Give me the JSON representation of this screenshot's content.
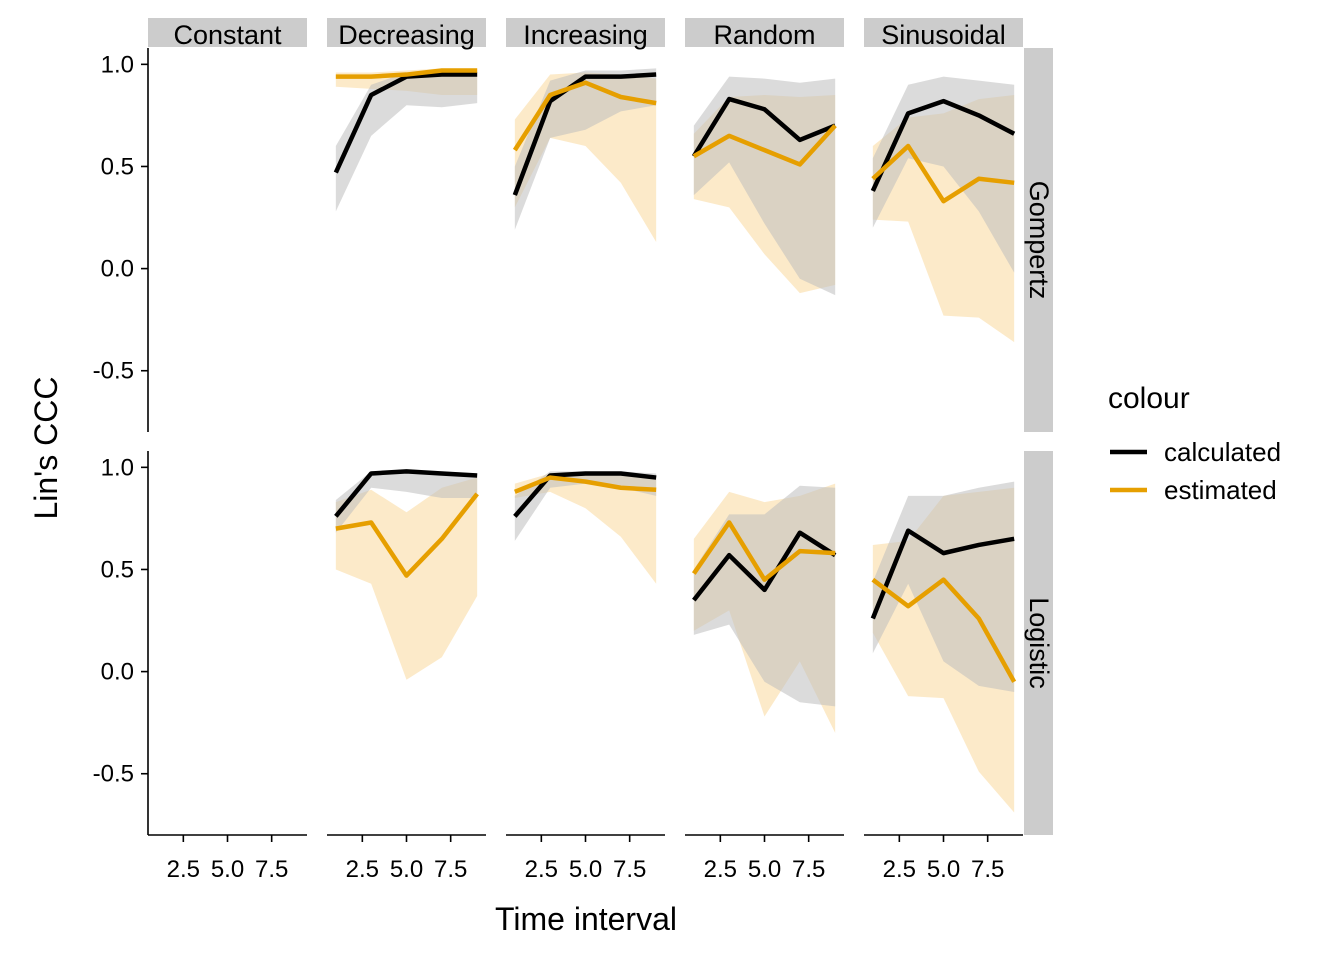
{
  "chart_data": {
    "type": "line",
    "xlabel": "Time interval",
    "ylabel": "Lin's CCC",
    "xlim": [
      0.5,
      9.5
    ],
    "ylim": [
      -0.8,
      1.08
    ],
    "x_ticks": [
      2.5,
      5.0,
      7.5
    ],
    "x_tick_labels": [
      "2.5",
      "5.0",
      "7.5"
    ],
    "y_ticks": [
      -0.5,
      0.0,
      0.5,
      1.0
    ],
    "y_tick_labels": [
      "-0.5",
      "0.0",
      "0.5",
      "1.0"
    ],
    "columns": [
      "Constant",
      "Decreasing",
      "Increasing",
      "Random",
      "Sinusoidal"
    ],
    "rows": [
      "Gompertz",
      "Logistic"
    ],
    "legend": {
      "title": "colour",
      "placement": "right",
      "entries": [
        {
          "label": "calculated",
          "color": "#000000"
        },
        {
          "label": "estimated",
          "color": "#E69F00"
        }
      ]
    },
    "colors": {
      "calculated": "#000000",
      "estimated": "#E69F00",
      "calculated_ribbon": "#bdbdbd",
      "estimated_ribbon": "#fbe6c0",
      "strip": "#cccccc"
    },
    "x": [
      1,
      3,
      5,
      7,
      9
    ],
    "panels": [
      {
        "row": "Gompertz",
        "col": "Constant",
        "calculated": null,
        "estimated": null
      },
      {
        "row": "Gompertz",
        "col": "Decreasing",
        "calculated": {
          "y": [
            0.47,
            0.85,
            0.94,
            0.95,
            0.95
          ],
          "lo": [
            0.28,
            0.65,
            0.8,
            0.79,
            0.81
          ],
          "hi": [
            0.6,
            0.9,
            0.96,
            0.97,
            0.97
          ]
        },
        "estimated": {
          "y": [
            0.94,
            0.94,
            0.95,
            0.97,
            0.97
          ],
          "lo": [
            0.89,
            0.88,
            0.87,
            0.85,
            0.85
          ],
          "hi": [
            0.96,
            0.96,
            0.97,
            0.98,
            0.98
          ]
        }
      },
      {
        "row": "Gompertz",
        "col": "Increasing",
        "calculated": {
          "y": [
            0.36,
            0.82,
            0.94,
            0.94,
            0.95
          ],
          "lo": [
            0.19,
            0.64,
            0.68,
            0.77,
            0.8
          ],
          "hi": [
            0.5,
            0.92,
            0.97,
            0.97,
            0.98
          ]
        },
        "estimated": {
          "y": [
            0.58,
            0.85,
            0.91,
            0.84,
            0.81
          ],
          "lo": [
            0.3,
            0.64,
            0.6,
            0.42,
            0.13
          ],
          "hi": [
            0.73,
            0.95,
            0.96,
            0.95,
            0.93
          ]
        }
      },
      {
        "row": "Gompertz",
        "col": "Random",
        "calculated": {
          "y": [
            0.55,
            0.83,
            0.78,
            0.63,
            0.7
          ],
          "lo": [
            0.36,
            0.52,
            0.22,
            -0.05,
            -0.13
          ],
          "hi": [
            0.7,
            0.94,
            0.93,
            0.91,
            0.93
          ]
        },
        "estimated": {
          "y": [
            0.55,
            0.65,
            0.58,
            0.51,
            0.7
          ],
          "lo": [
            0.34,
            0.3,
            0.07,
            -0.12,
            -0.08
          ],
          "hi": [
            0.66,
            0.84,
            0.85,
            0.84,
            0.85
          ]
        }
      },
      {
        "row": "Gompertz",
        "col": "Sinusoidal",
        "calculated": {
          "y": [
            0.38,
            0.76,
            0.82,
            0.75,
            0.66
          ],
          "lo": [
            0.2,
            0.54,
            0.5,
            0.28,
            -0.02
          ],
          "hi": [
            0.54,
            0.9,
            0.94,
            0.92,
            0.9
          ]
        },
        "estimated": {
          "y": [
            0.44,
            0.6,
            0.33,
            0.44,
            0.42
          ],
          "lo": [
            0.24,
            0.23,
            -0.23,
            -0.24,
            -0.36
          ],
          "hi": [
            0.6,
            0.74,
            0.76,
            0.83,
            0.85
          ]
        }
      },
      {
        "row": "Logistic",
        "col": "Constant",
        "calculated": null,
        "estimated": null
      },
      {
        "row": "Logistic",
        "col": "Decreasing",
        "calculated": {
          "y": [
            0.76,
            0.97,
            0.98,
            0.97,
            0.96
          ],
          "lo": [
            0.68,
            0.9,
            0.88,
            0.85,
            0.85
          ],
          "hi": [
            0.84,
            0.98,
            0.98,
            0.98,
            0.97
          ]
        },
        "estimated": {
          "y": [
            0.7,
            0.73,
            0.47,
            0.65,
            0.87
          ],
          "lo": [
            0.5,
            0.43,
            -0.04,
            0.07,
            0.37
          ],
          "hi": [
            0.83,
            0.89,
            0.78,
            0.9,
            0.95
          ]
        }
      },
      {
        "row": "Logistic",
        "col": "Increasing",
        "calculated": {
          "y": [
            0.76,
            0.96,
            0.97,
            0.97,
            0.95
          ],
          "lo": [
            0.64,
            0.9,
            0.92,
            0.9,
            0.86
          ],
          "hi": [
            0.86,
            0.98,
            0.98,
            0.98,
            0.97
          ]
        },
        "estimated": {
          "y": [
            0.88,
            0.95,
            0.93,
            0.9,
            0.89
          ],
          "lo": [
            0.85,
            0.88,
            0.8,
            0.66,
            0.43
          ],
          "hi": [
            0.92,
            0.97,
            0.97,
            0.96,
            0.96
          ]
        }
      },
      {
        "row": "Logistic",
        "col": "Random",
        "calculated": {
          "y": [
            0.35,
            0.57,
            0.4,
            0.68,
            0.57
          ],
          "lo": [
            0.18,
            0.23,
            -0.05,
            -0.15,
            -0.17
          ],
          "hi": [
            0.5,
            0.77,
            0.77,
            0.91,
            0.9
          ]
        },
        "estimated": {
          "y": [
            0.48,
            0.73,
            0.45,
            0.59,
            0.58
          ],
          "lo": [
            0.2,
            0.3,
            -0.22,
            0.05,
            -0.3
          ],
          "hi": [
            0.65,
            0.88,
            0.83,
            0.86,
            0.92
          ]
        }
      },
      {
        "row": "Logistic",
        "col": "Sinusoidal",
        "calculated": {
          "y": [
            0.26,
            0.69,
            0.58,
            0.62,
            0.65
          ],
          "lo": [
            0.09,
            0.43,
            0.05,
            -0.07,
            -0.1
          ],
          "hi": [
            0.44,
            0.86,
            0.86,
            0.9,
            0.93
          ]
        },
        "estimated": {
          "y": [
            0.45,
            0.32,
            0.45,
            0.26,
            -0.05
          ],
          "lo": [
            0.19,
            -0.12,
            -0.13,
            -0.49,
            -0.69
          ],
          "hi": [
            0.62,
            0.64,
            0.86,
            0.88,
            0.9
          ]
        }
      }
    ]
  }
}
